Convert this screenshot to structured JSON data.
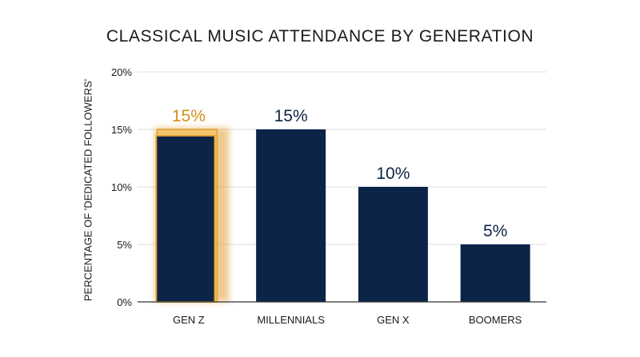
{
  "chart_data": {
    "type": "bar",
    "title": "CLASSICAL MUSIC ATTENDANCE BY GENERATION",
    "xlabel": "",
    "ylabel": "PERCENTAGE OF 'DEDICATED FOLLOWERS'",
    "categories": [
      "GEN Z",
      "MILLENNIALS",
      "GEN X",
      "BOOMERS"
    ],
    "values": [
      15,
      15,
      10,
      5
    ],
    "data_labels": [
      "15%",
      "15%",
      "10%",
      "5%"
    ],
    "yticks": [
      0,
      5,
      10,
      15,
      20
    ],
    "ytick_labels": [
      "0%",
      "5%",
      "10%",
      "15%",
      "20%"
    ],
    "ylim": [
      0,
      20
    ],
    "grid": true,
    "highlight_index": 0,
    "colors": {
      "bar": "#0c2447",
      "highlight": "#e0a030",
      "highlight_label": "#d4901a",
      "label": "#0c2447",
      "grid": "#dddddd",
      "axis": "#333333"
    }
  }
}
